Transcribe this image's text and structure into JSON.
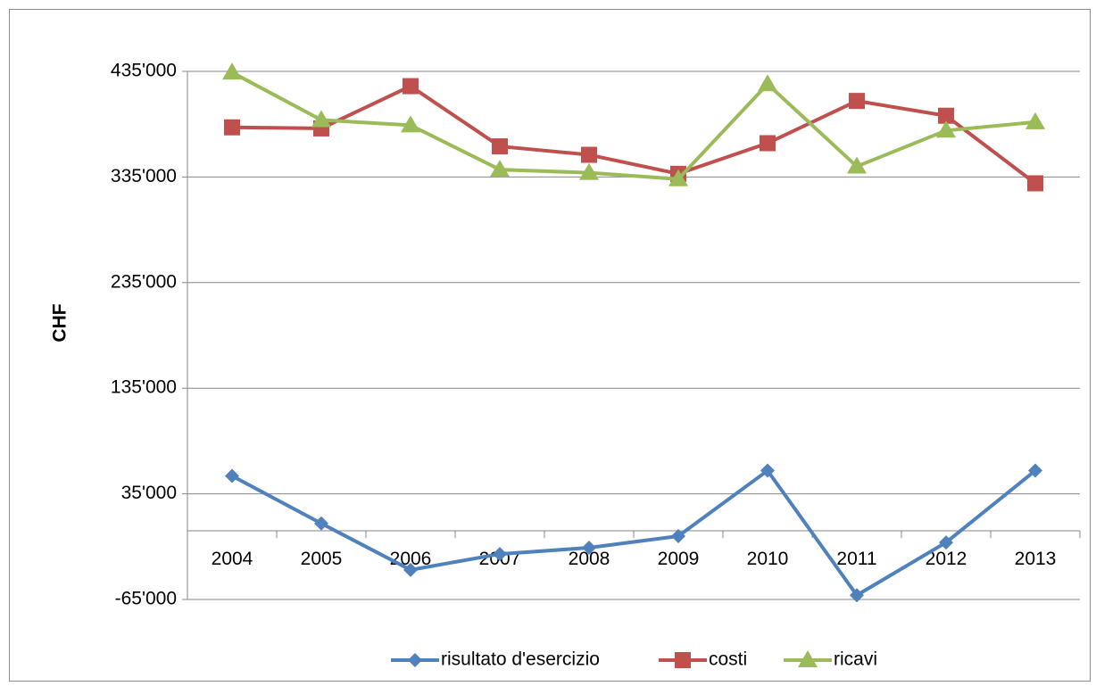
{
  "chart_data": {
    "type": "line",
    "ylabel": "CHF",
    "ylim": [
      -65000,
      435000
    ],
    "yticks": [
      -65000,
      35000,
      135000,
      235000,
      335000,
      435000
    ],
    "ytick_labels": [
      "-65'000",
      "35'000",
      "135'000",
      "235'000",
      "335'000",
      "435'000"
    ],
    "categories": [
      "2004",
      "2005",
      "2006",
      "2007",
      "2008",
      "2009",
      "2010",
      "2011",
      "2012",
      "2013"
    ],
    "series": [
      {
        "name": "risultato d'esercizio",
        "color": "#4f81bd",
        "marker": "diamond",
        "values": [
          52000,
          7000,
          -37000,
          -22000,
          -16000,
          -5000,
          57000,
          -61000,
          -11000,
          57000
        ]
      },
      {
        "name": "costi",
        "color": "#c0504d",
        "marker": "square",
        "values": [
          382000,
          381000,
          421000,
          364000,
          356000,
          338000,
          367000,
          407000,
          393000,
          329000
        ]
      },
      {
        "name": "ricavi",
        "color": "#9bbb59",
        "marker": "triangle",
        "values": [
          434000,
          389000,
          384000,
          342000,
          339000,
          333000,
          423000,
          345000,
          379000,
          387000
        ]
      }
    ],
    "grid": true,
    "legend_position": "bottom"
  }
}
